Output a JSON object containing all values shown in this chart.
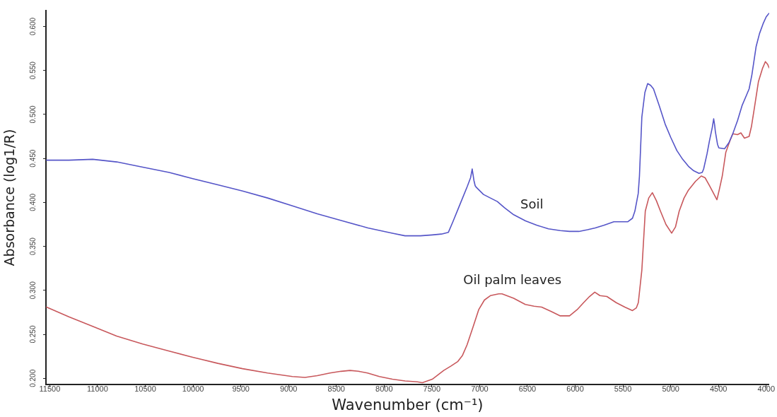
{
  "chart_data": {
    "type": "line",
    "xlabel": "Wavenumber (cm⁻¹)",
    "ylabel": "Absorbance (log1/R)",
    "xlim": [
      11540,
      3970
    ],
    "xticks": [
      11500,
      11000,
      10500,
      10000,
      9500,
      9000,
      8500,
      8000,
      7500,
      7000,
      6500,
      6000,
      5500,
      5000,
      4500,
      4000
    ],
    "ylim": [
      0.193,
      0.618
    ],
    "yticks": [
      {
        "value": 0.2,
        "label": "0.200"
      },
      {
        "value": 0.25,
        "label": "0.250"
      },
      {
        "value": 0.3,
        "label": "0.300"
      },
      {
        "value": 0.35,
        "label": "0.350"
      },
      {
        "value": 0.4,
        "label": "0.400"
      },
      {
        "value": 0.45,
        "label": "0.450"
      },
      {
        "value": 0.5,
        "label": "0.500"
      },
      {
        "value": 0.55,
        "label": "0.550"
      },
      {
        "value": 0.6,
        "label": "0.600"
      }
    ],
    "marker": "none",
    "line_style": "solid",
    "series": [
      {
        "name": "Soil",
        "color": "#5555c8",
        "x": [
          11534,
          11300,
          11051,
          10800,
          10527,
          10250,
          10004,
          9740,
          9482,
          9220,
          8960,
          8700,
          8436,
          8170,
          7913,
          7781,
          7620,
          7496,
          7400,
          7327,
          7280,
          7205,
          7130,
          7095,
          7078,
          7060,
          7047,
          7034,
          6960,
          6888,
          6815,
          6740,
          6644,
          6520,
          6400,
          6280,
          6156,
          6060,
          5961,
          5870,
          5790,
          5700,
          5595,
          5520,
          5448,
          5400,
          5375,
          5340,
          5327,
          5302,
          5270,
          5241,
          5210,
          5180,
          5120,
          5058,
          5000,
          4936,
          4875,
          4814,
          4760,
          4704,
          4670,
          4655,
          4620,
          4594,
          4565,
          4550,
          4540,
          4533,
          4510,
          4496,
          4436,
          4390,
          4350,
          4300,
          4253,
          4210,
          4179,
          4150,
          4106,
          4070,
          4033,
          4000,
          3970
        ],
        "values": [
          0.448,
          0.448,
          0.449,
          0.446,
          0.44,
          0.434,
          0.427,
          0.42,
          0.413,
          0.405,
          0.396,
          0.387,
          0.379,
          0.371,
          0.365,
          0.362,
          0.362,
          0.363,
          0.364,
          0.366,
          0.378,
          0.398,
          0.418,
          0.428,
          0.438,
          0.425,
          0.419,
          0.417,
          0.409,
          0.405,
          0.401,
          0.394,
          0.386,
          0.379,
          0.374,
          0.37,
          0.368,
          0.367,
          0.367,
          0.369,
          0.371,
          0.374,
          0.378,
          0.378,
          0.378,
          0.382,
          0.39,
          0.41,
          0.43,
          0.497,
          0.525,
          0.535,
          0.533,
          0.529,
          0.51,
          0.489,
          0.474,
          0.459,
          0.449,
          0.441,
          0.436,
          0.433,
          0.434,
          0.438,
          0.455,
          0.47,
          0.485,
          0.495,
          0.488,
          0.481,
          0.466,
          0.462,
          0.461,
          0.468,
          0.478,
          0.493,
          0.51,
          0.521,
          0.529,
          0.545,
          0.577,
          0.592,
          0.603,
          0.611,
          0.615
        ]
      },
      {
        "name": "Oil palm leaves",
        "color": "#c8585c",
        "x": [
          11534,
          11300,
          11051,
          10800,
          10527,
          10250,
          10004,
          9740,
          9482,
          9220,
          8960,
          8828,
          8700,
          8567,
          8450,
          8357,
          8270,
          8174,
          8050,
          7913,
          7780,
          7651,
          7600,
          7496,
          7376,
          7300,
          7230,
          7180,
          7132,
          7070,
          7010,
          6950,
          6888,
          6800,
          6766,
          6644,
          6522,
          6430,
          6351,
          6250,
          6156,
          6059,
          5980,
          5912,
          5850,
          5795,
          5741,
          5668,
          5570,
          5480,
          5400,
          5360,
          5339,
          5302,
          5266,
          5230,
          5192,
          5150,
          5107,
          5050,
          4990,
          4950,
          4911,
          4860,
          4814,
          4740,
          4680,
          4640,
          4594,
          4550,
          4516,
          4490,
          4460,
          4423,
          4380,
          4350,
          4301,
          4265,
          4228,
          4179,
          4155,
          4120,
          4082,
          4040,
          4009,
          3985,
          3970
        ],
        "values": [
          0.281,
          0.27,
          0.259,
          0.248,
          0.239,
          0.231,
          0.224,
          0.217,
          0.211,
          0.206,
          0.202,
          0.201,
          0.203,
          0.206,
          0.208,
          0.209,
          0.208,
          0.206,
          0.202,
          0.199,
          0.197,
          0.196,
          0.195,
          0.199,
          0.209,
          0.214,
          0.219,
          0.226,
          0.238,
          0.258,
          0.278,
          0.289,
          0.294,
          0.296,
          0.296,
          0.291,
          0.284,
          0.282,
          0.281,
          0.276,
          0.271,
          0.271,
          0.278,
          0.286,
          0.293,
          0.298,
          0.294,
          0.293,
          0.286,
          0.281,
          0.277,
          0.28,
          0.286,
          0.323,
          0.39,
          0.405,
          0.411,
          0.402,
          0.39,
          0.375,
          0.365,
          0.372,
          0.39,
          0.405,
          0.414,
          0.424,
          0.43,
          0.428,
          0.419,
          0.41,
          0.403,
          0.415,
          0.43,
          0.457,
          0.47,
          0.478,
          0.477,
          0.479,
          0.473,
          0.475,
          0.486,
          0.51,
          0.537,
          0.552,
          0.56,
          0.557,
          0.553
        ]
      }
    ]
  }
}
